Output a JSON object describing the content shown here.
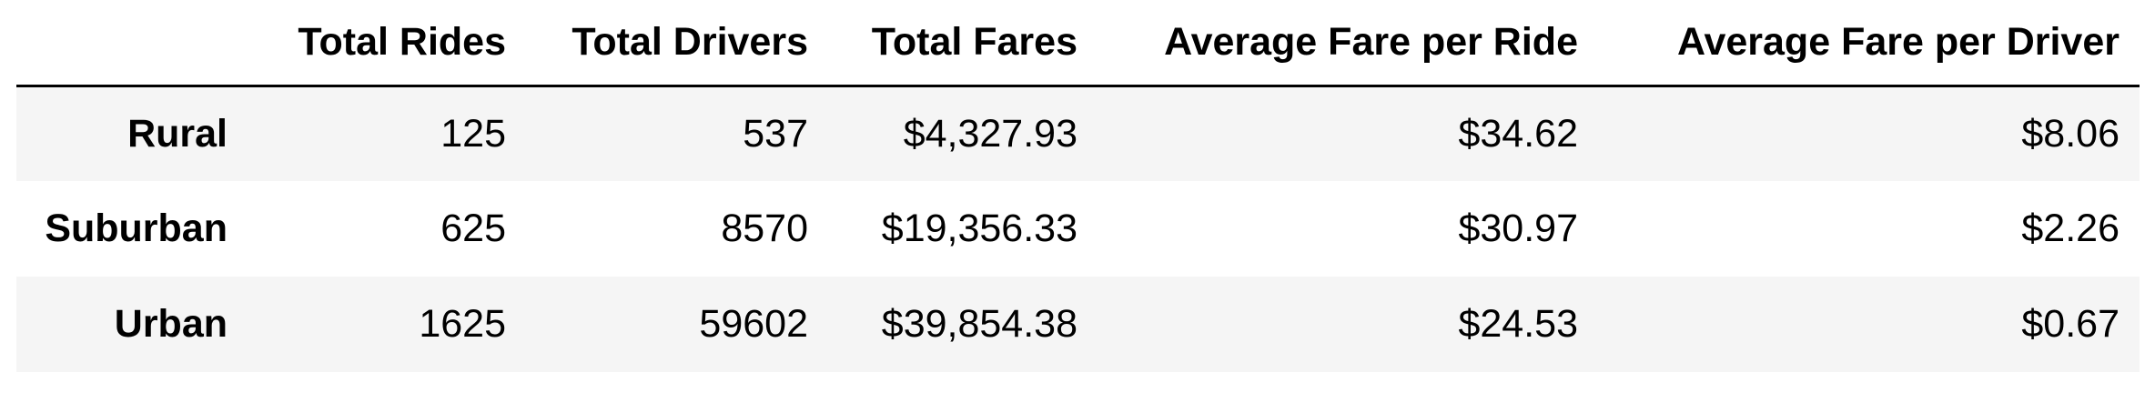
{
  "chart_data": {
    "type": "table",
    "columns": [
      "Total Rides",
      "Total Drivers",
      "Total Fares",
      "Average Fare per Ride",
      "Average Fare per Driver"
    ],
    "rows": [
      {
        "label": "Rural",
        "values": [
          "125",
          "537",
          "$4,327.93",
          "$34.62",
          "$8.06"
        ]
      },
      {
        "label": "Suburban",
        "values": [
          "625",
          "8570",
          "$19,356.33",
          "$30.97",
          "$2.26"
        ]
      },
      {
        "label": "Urban",
        "values": [
          "1625",
          "59602",
          "$39,854.38",
          "$24.53",
          "$0.67"
        ]
      }
    ],
    "header_rule_color": "#000000",
    "stripe_color": "#f5f5f5"
  }
}
